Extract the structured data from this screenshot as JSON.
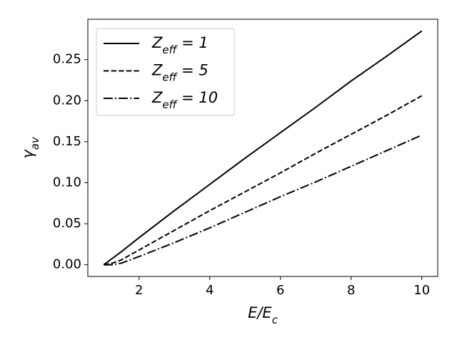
{
  "chart_data": {
    "type": "line",
    "xlabel": "E/Ec",
    "ylabel": "γav",
    "x": [
      1,
      1.25,
      1.5,
      2,
      3,
      4,
      5,
      6,
      7,
      8,
      9,
      10
    ],
    "series": [
      {
        "name": "Zeff = 1",
        "color": "#000000",
        "dash": "solid",
        "values": [
          0,
          0.008,
          0.016,
          0.033,
          0.066,
          0.098,
          0.13,
          0.161,
          0.192,
          0.224,
          0.254,
          0.285
        ]
      },
      {
        "name": "Zeff = 5",
        "color": "#000000",
        "dash": "dashed",
        "values": [
          0,
          0.002,
          0.006,
          0.018,
          0.042,
          0.066,
          0.089,
          0.112,
          0.136,
          0.159,
          0.182,
          0.206
        ]
      },
      {
        "name": "Zeff = 10",
        "color": "#000000",
        "dash": "dashdot",
        "values": [
          0,
          0,
          0.002,
          0.01,
          0.027,
          0.045,
          0.064,
          0.083,
          0.101,
          0.12,
          0.139,
          0.158
        ]
      }
    ],
    "xlim": [
      0.55,
      10.45
    ],
    "ylim": [
      -0.01425,
      0.29925
    ],
    "xticks": [
      2,
      4,
      6,
      8,
      10
    ],
    "yticks": [
      {
        "value": 0,
        "label": "0.00"
      },
      {
        "value": 0.05,
        "label": "0.05"
      },
      {
        "value": 0.1,
        "label": "0.10"
      },
      {
        "value": 0.15,
        "label": "0.15"
      },
      {
        "value": 0.2,
        "label": "0.20"
      },
      {
        "value": 0.25,
        "label": "0.25"
      }
    ],
    "legend": "upper left",
    "grid": false
  }
}
